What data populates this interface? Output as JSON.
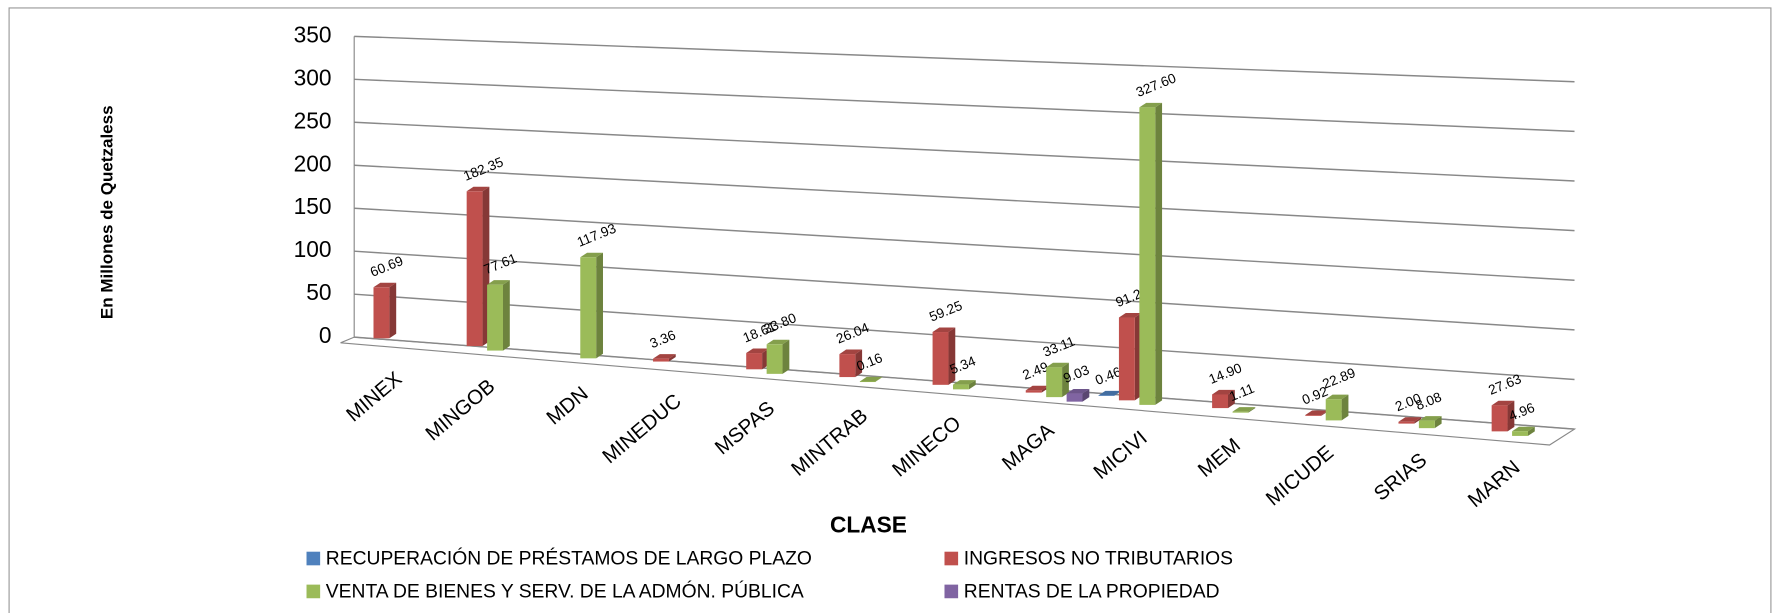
{
  "chart_data": {
    "type": "bar3d",
    "x_label": "CLASE",
    "y_label": "En Millones de Quetzaless",
    "categories": [
      "MINEX",
      "MINGOB",
      "MDN",
      "MINEDUC",
      "MSPAS",
      "MINTRAB",
      "MINECO",
      "MAGA",
      "MICIVI",
      "MEM",
      "MICUDE",
      "SRIAS",
      "MARN"
    ],
    "series": [
      {
        "name": "RECUPERACIÓN DE PRÉSTAMOS DE LARGO PLAZO",
        "color": "#4f81bd",
        "values": [
          null,
          null,
          null,
          null,
          null,
          null,
          null,
          null,
          0.46,
          null,
          null,
          null,
          null
        ],
        "value_labels": [
          null,
          null,
          null,
          null,
          null,
          null,
          null,
          null,
          "0.46",
          null,
          null,
          null,
          null
        ]
      },
      {
        "name": "INGRESOS NO TRIBUTARIOS",
        "color": "#c0504d",
        "values": [
          60.69,
          182.35,
          null,
          3.36,
          18.61,
          26.04,
          59.25,
          2.49,
          91.2,
          14.9,
          0.92,
          2.0,
          27.63
        ],
        "value_labels": [
          "60.69",
          "182.35",
          null,
          "3.36",
          "18.61",
          "26.04",
          "59.25",
          "2.49",
          "91.20",
          "14.90",
          "0.92",
          "2.00",
          "27.63"
        ]
      },
      {
        "name": "VENTA DE BIENES Y SERV. DE LA ADMÓN. PÚBLICA",
        "color": "#9bbb59",
        "values": [
          null,
          77.61,
          117.93,
          null,
          33.8,
          0.16,
          5.34,
          33.11,
          327.6,
          1.11,
          22.89,
          8.08,
          4.96
        ],
        "value_labels": [
          null,
          "77.61",
          "117.93",
          null,
          "33.80",
          "0.16",
          "5.34",
          "33.11",
          "327.60",
          "1.11",
          "22.89",
          "8.08",
          "4.96"
        ]
      },
      {
        "name": "RENTAS DE LA PROPIEDAD",
        "color": "#8064a2",
        "values": [
          null,
          null,
          null,
          null,
          null,
          null,
          null,
          9.03,
          null,
          null,
          null,
          null,
          null
        ],
        "value_labels": [
          null,
          null,
          null,
          null,
          null,
          null,
          null,
          "9.03",
          null,
          null,
          null,
          null,
          null
        ]
      }
    ],
    "ylim": [
      0,
      350
    ],
    "yticks": [
      0,
      50,
      100,
      150,
      200,
      250,
      300,
      350
    ],
    "grid": true,
    "legend": "bottom"
  }
}
